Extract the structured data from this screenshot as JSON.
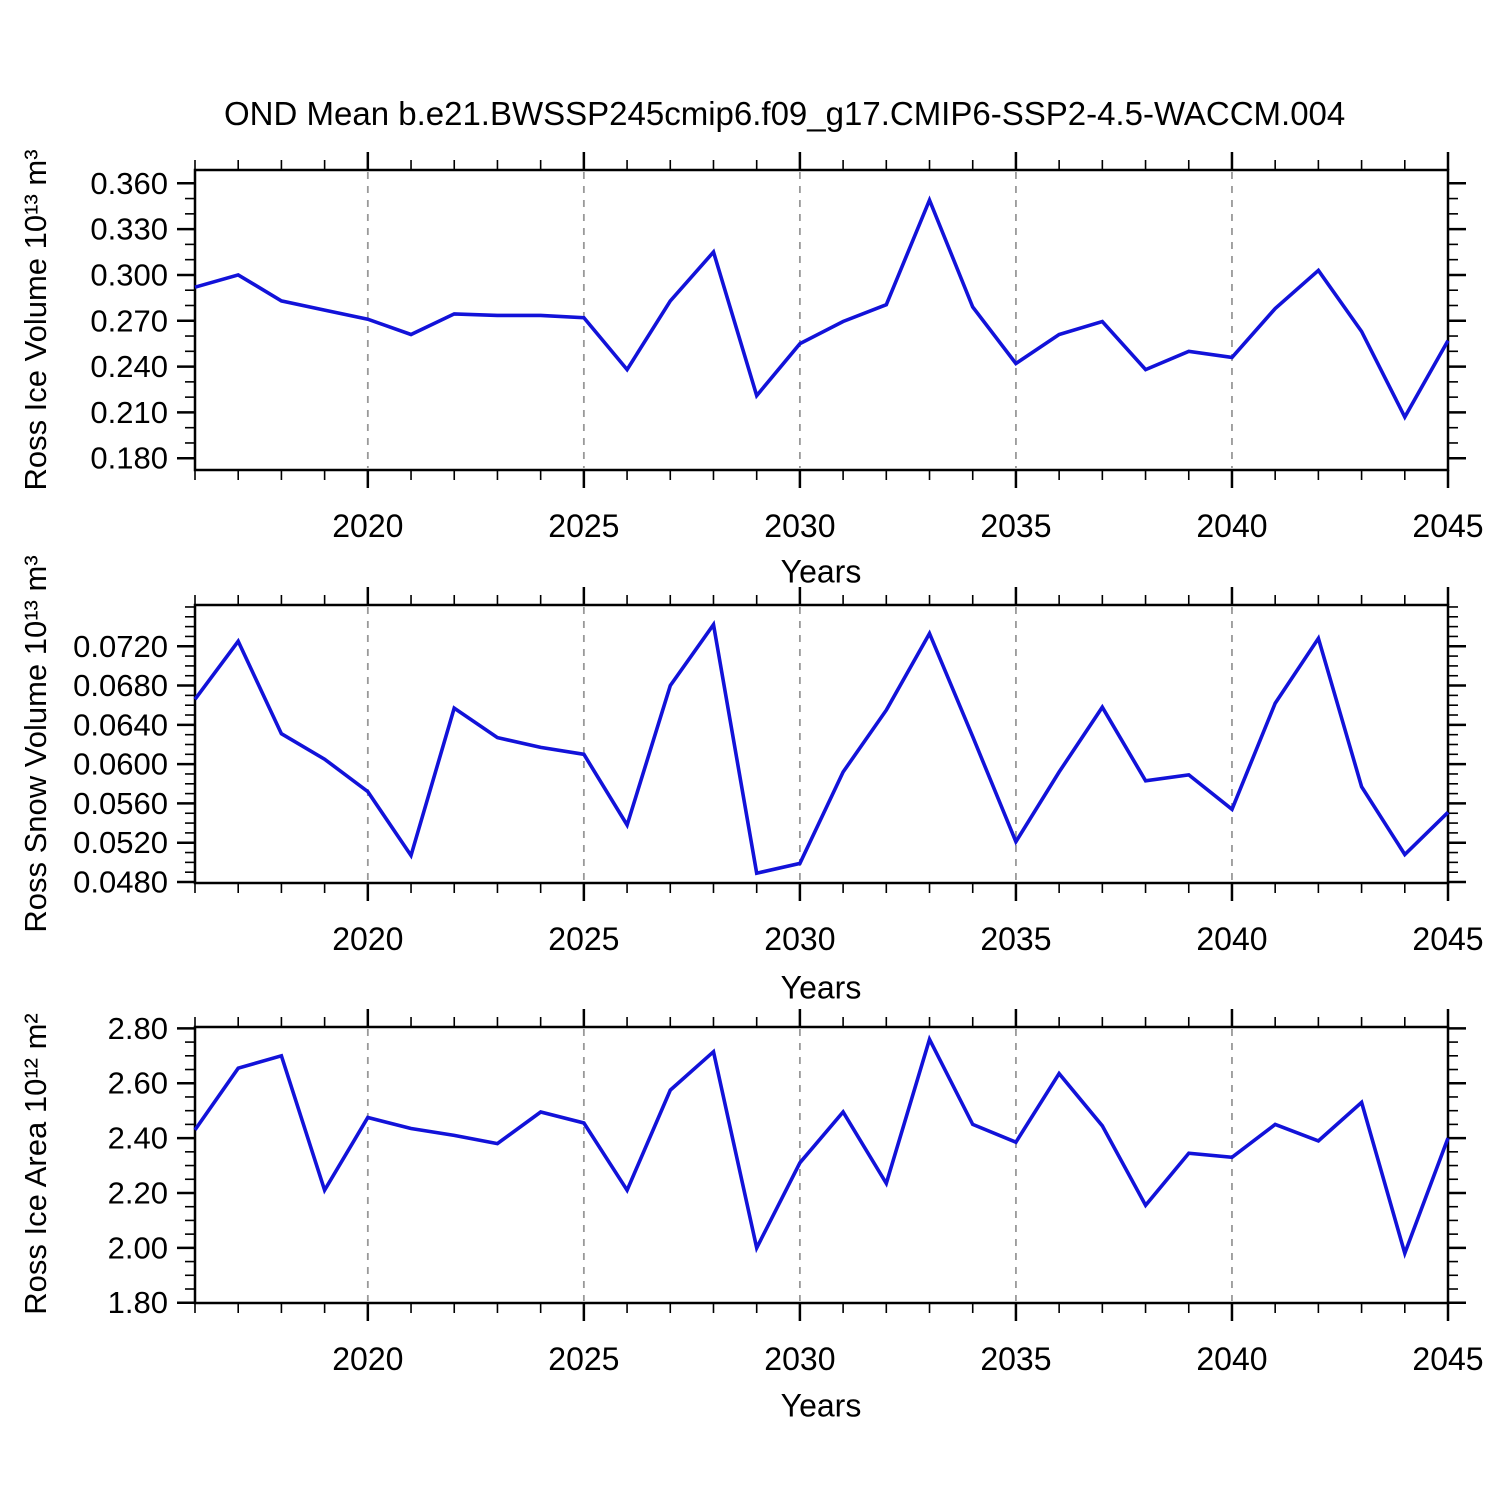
{
  "title": "OND Mean b.e21.BWSSP245cmip6.f09_g17.CMIP6-SSP2-4.5-WACCM.004",
  "colors": {
    "line": "#1212d9",
    "grid": "#999999",
    "frame": "#000000",
    "text": "#000000"
  },
  "chart_data": [
    {
      "type": "line",
      "ylabel": "Ross Ice Volume 10¹³ m³",
      "xlabel": "Years",
      "x": [
        2016,
        2017,
        2018,
        2019,
        2020,
        2021,
        2022,
        2023,
        2024,
        2025,
        2026,
        2027,
        2028,
        2029,
        2030,
        2031,
        2032,
        2033,
        2034,
        2035,
        2036,
        2037,
        2038,
        2039,
        2040,
        2041,
        2042,
        2043,
        2044,
        2045
      ],
      "values": [
        0.292,
        0.3,
        0.283,
        0.277,
        0.271,
        0.261,
        0.2745,
        0.2735,
        0.2735,
        0.272,
        0.238,
        0.283,
        0.315,
        0.221,
        0.255,
        0.2695,
        0.2805,
        0.349,
        0.279,
        0.242,
        0.261,
        0.2695,
        0.238,
        0.25,
        0.246,
        0.278,
        0.303,
        0.263,
        0.207,
        0.257
      ],
      "ylim": [
        0.1723,
        0.3687
      ],
      "yticks": [
        "0.180",
        "0.210",
        "0.240",
        "0.270",
        "0.300",
        "0.330",
        "0.360"
      ],
      "yminor_step": 0.01,
      "xlim": [
        2016,
        2045
      ],
      "xticks": [
        "2020",
        "2025",
        "2030",
        "2035",
        "2040",
        "2045"
      ],
      "xminor_step": 1,
      "grid": "vertical-dashed-at-major-xticks",
      "legend": "none"
    },
    {
      "type": "line",
      "ylabel": "Ross Snow Volume 10¹³ m³",
      "xlabel": "Years",
      "x": [
        2016,
        2017,
        2018,
        2019,
        2020,
        2021,
        2022,
        2023,
        2024,
        2025,
        2026,
        2027,
        2028,
        2029,
        2030,
        2031,
        2032,
        2033,
        2034,
        2035,
        2036,
        2037,
        2038,
        2039,
        2040,
        2041,
        2042,
        2043,
        2044,
        2045
      ],
      "values": [
        0.0666,
        0.0725,
        0.0631,
        0.0605,
        0.0572,
        0.0507,
        0.0657,
        0.0627,
        0.0617,
        0.061,
        0.0538,
        0.068,
        0.0742,
        0.0489,
        0.0499,
        0.0592,
        0.0655,
        0.0733,
        0.0628,
        0.0521,
        0.0592,
        0.0658,
        0.0583,
        0.0589,
        0.0554,
        0.0662,
        0.0728,
        0.0577,
        0.0508,
        0.0551
      ],
      "ylim": [
        0.0479,
        0.0762
      ],
      "yticks": [
        "0.0480",
        "0.0520",
        "0.0560",
        "0.0600",
        "0.0640",
        "0.0680",
        "0.0720"
      ],
      "yminor_step": 0.001,
      "xlim": [
        2016,
        2045
      ],
      "xticks": [
        "2020",
        "2025",
        "2030",
        "2035",
        "2040",
        "2045"
      ],
      "xminor_step": 1,
      "grid": "vertical-dashed-at-major-xticks",
      "legend": "none"
    },
    {
      "type": "line",
      "ylabel": "Ross Ice Area 10¹² m²",
      "xlabel": "Years",
      "x": [
        2016,
        2017,
        2018,
        2019,
        2020,
        2021,
        2022,
        2023,
        2024,
        2025,
        2026,
        2027,
        2028,
        2029,
        2030,
        2031,
        2032,
        2033,
        2034,
        2035,
        2036,
        2037,
        2038,
        2039,
        2040,
        2041,
        2042,
        2043,
        2044,
        2045
      ],
      "values": [
        2.43,
        2.655,
        2.7,
        2.21,
        2.475,
        2.435,
        2.41,
        2.38,
        2.495,
        2.455,
        2.21,
        2.575,
        2.715,
        2.0,
        2.31,
        2.495,
        2.235,
        2.76,
        2.45,
        2.385,
        2.635,
        2.445,
        2.155,
        2.345,
        2.33,
        2.45,
        2.39,
        2.53,
        1.98,
        2.4
      ],
      "ylim": [
        1.799,
        2.805
      ],
      "yticks": [
        "1.80",
        "2.00",
        "2.20",
        "2.40",
        "2.60",
        "2.80"
      ],
      "yminor_step": 0.05,
      "xlim": [
        2016,
        2045
      ],
      "xticks": [
        "2020",
        "2025",
        "2030",
        "2035",
        "2040",
        "2045"
      ],
      "xminor_step": 1,
      "grid": "vertical-dashed-at-major-xticks",
      "legend": "none"
    }
  ]
}
